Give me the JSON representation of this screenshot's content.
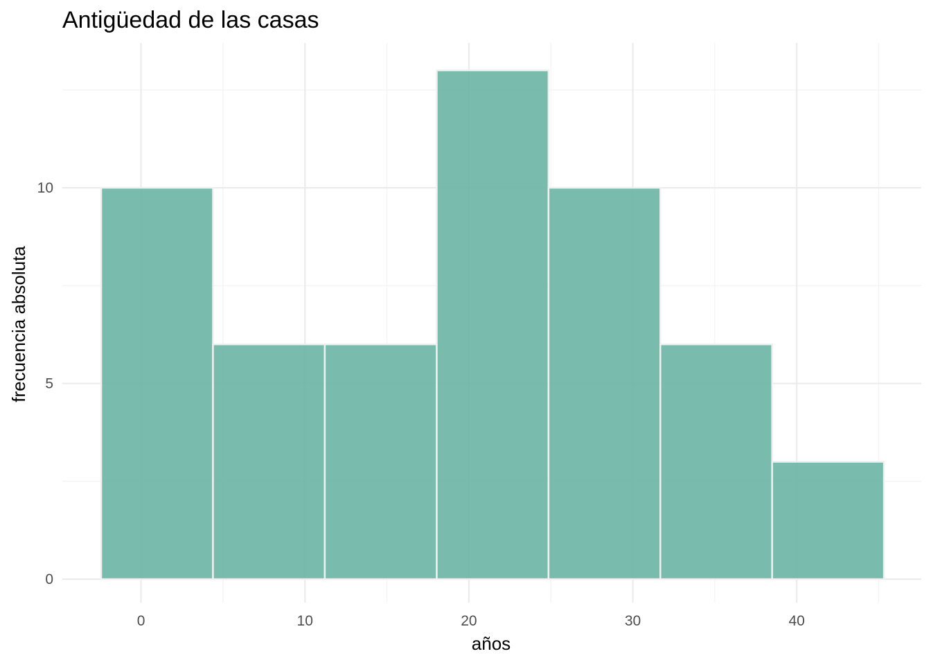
{
  "chart_data": {
    "type": "bar",
    "title": "Antigüedad de las casas",
    "xlabel": "años",
    "ylabel": "frecuencia absoluta",
    "bins": [
      {
        "x0": -2.43,
        "x1": 4.39,
        "count": 10
      },
      {
        "x0": 4.39,
        "x1": 11.21,
        "count": 6
      },
      {
        "x0": 11.21,
        "x1": 18.04,
        "count": 6
      },
      {
        "x0": 18.04,
        "x1": 24.86,
        "count": 13
      },
      {
        "x0": 24.86,
        "x1": 31.68,
        "count": 10
      },
      {
        "x0": 31.68,
        "x1": 38.5,
        "count": 6
      },
      {
        "x0": 38.5,
        "x1": 45.32,
        "count": 3
      }
    ],
    "x_ticks": [
      0,
      10,
      20,
      30,
      40
    ],
    "y_ticks": [
      0,
      5,
      10
    ],
    "xlim": [
      -4.8,
      47.6
    ],
    "ylim": [
      -0.6,
      13.7
    ],
    "grid": true,
    "bar_color": "#66b2a0",
    "legend": "none"
  }
}
